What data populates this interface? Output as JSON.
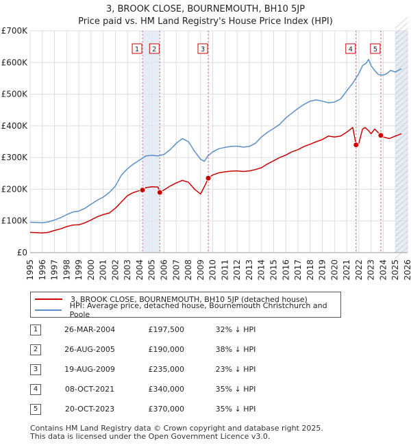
{
  "chart_data": {
    "type": "line",
    "title": "3, BROOK CLOSE, BOURNEMOUTH, BH10 5JP",
    "subtitle": "Price paid vs. HM Land Registry's House Price Index (HPI)",
    "ylabel": "",
    "xlabel": "",
    "xlim": [
      1995,
      2026
    ],
    "ylim": [
      0,
      700000
    ],
    "y_ticks": [
      0,
      100000,
      200000,
      300000,
      400000,
      500000,
      600000,
      700000
    ],
    "y_tick_labels": [
      "£0",
      "£100K",
      "£200K",
      "£300K",
      "£400K",
      "£500K",
      "£600K",
      "£700K"
    ],
    "x_ticks": [
      1995,
      1996,
      1997,
      1998,
      1999,
      2000,
      2001,
      2002,
      2003,
      2004,
      2005,
      2006,
      2007,
      2008,
      2009,
      2010,
      2011,
      2012,
      2013,
      2014,
      2015,
      2016,
      2017,
      2018,
      2019,
      2020,
      2021,
      2022,
      2023,
      2024,
      2025,
      2026
    ],
    "grid": true,
    "shaded_regions": [
      [
        2004.23,
        2005.65
      ],
      [
        2009.63,
        2009.7
      ],
      [
        2021.77,
        2021.83
      ],
      [
        2023.8,
        2023.86
      ],
      [
        2025.0,
        2026.0
      ]
    ],
    "series": [
      {
        "name": "3, BROOK CLOSE, BOURNEMOUTH, BH10 5JP (detached house)",
        "color": "#cc0000",
        "x": [
          1995,
          1995.5,
          1996,
          1996.5,
          1997,
          1997.5,
          1998,
          1998.5,
          1999,
          1999.5,
          2000,
          2000.5,
          2001,
          2001.5,
          2002,
          2002.5,
          2003,
          2003.5,
          2004,
          2004.23,
          2004.5,
          2005,
          2005.5,
          2005.65,
          2006,
          2006.5,
          2007,
          2007.5,
          2008,
          2008.5,
          2009,
          2009.4,
          2009.63,
          2009.8,
          2010,
          2010.5,
          2011,
          2011.5,
          2012,
          2012.5,
          2013,
          2013.5,
          2014,
          2014.5,
          2015,
          2015.5,
          2016,
          2016.5,
          2017,
          2017.5,
          2018,
          2018.5,
          2019,
          2019.5,
          2020,
          2020.5,
          2021,
          2021.5,
          2021.77,
          2022,
          2022.3,
          2022.5,
          2022.8,
          2023,
          2023.3,
          2023.8,
          2024,
          2024.5,
          2025,
          2025.5
        ],
        "values": [
          64000,
          63000,
          62000,
          64000,
          70000,
          75000,
          82000,
          87000,
          88000,
          94000,
          103000,
          113000,
          120000,
          125000,
          140000,
          160000,
          180000,
          190000,
          196000,
          197500,
          205000,
          208000,
          207000,
          190000,
          198000,
          210000,
          220000,
          228000,
          222000,
          200000,
          185000,
          215000,
          235000,
          240000,
          245000,
          252000,
          255000,
          257000,
          258000,
          256000,
          258000,
          262000,
          268000,
          280000,
          290000,
          300000,
          308000,
          318000,
          325000,
          335000,
          342000,
          350000,
          357000,
          368000,
          365000,
          368000,
          380000,
          395000,
          340000,
          345000,
          390000,
          395000,
          385000,
          375000,
          390000,
          370000,
          365000,
          360000,
          368000,
          375000
        ]
      },
      {
        "name": "HPI: Average price, detached house, Bournemouth Christchurch and Poole",
        "color": "#5b8fc9",
        "x": [
          1995,
          1995.5,
          1996,
          1996.5,
          1997,
          1997.5,
          1998,
          1998.5,
          1999,
          1999.5,
          2000,
          2000.5,
          2001,
          2001.5,
          2002,
          2002.5,
          2003,
          2003.5,
          2004,
          2004.5,
          2005,
          2005.5,
          2006,
          2006.5,
          2007,
          2007.5,
          2008,
          2008.5,
          2009,
          2009.3,
          2009.6,
          2010,
          2010.5,
          2011,
          2011.5,
          2012,
          2012.5,
          2013,
          2013.5,
          2014,
          2014.5,
          2015,
          2015.5,
          2016,
          2016.5,
          2017,
          2017.5,
          2018,
          2018.5,
          2019,
          2019.5,
          2020,
          2020.5,
          2021,
          2021.5,
          2022,
          2022.3,
          2022.6,
          2022.8,
          2023,
          2023.3,
          2023.6,
          2024,
          2024.3,
          2024.6,
          2025,
          2025.5
        ],
        "values": [
          96000,
          95000,
          94000,
          97000,
          103000,
          110000,
          120000,
          128000,
          131000,
          140000,
          153000,
          165000,
          175000,
          190000,
          210000,
          245000,
          265000,
          280000,
          292000,
          305000,
          307000,
          305000,
          310000,
          325000,
          345000,
          360000,
          350000,
          320000,
          295000,
          288000,
          305000,
          318000,
          328000,
          332000,
          335000,
          336000,
          333000,
          335000,
          345000,
          365000,
          380000,
          392000,
          405000,
          425000,
          440000,
          455000,
          468000,
          478000,
          482000,
          478000,
          473000,
          475000,
          485000,
          510000,
          535000,
          565000,
          590000,
          598000,
          610000,
          590000,
          575000,
          562000,
          560000,
          565000,
          575000,
          570000,
          580000
        ]
      }
    ],
    "markers": [
      {
        "label": "1",
        "x": 2004.23,
        "y": 197500
      },
      {
        "label": "2",
        "x": 2005.65,
        "y": 190000
      },
      {
        "label": "3",
        "x": 2009.63,
        "y": 235000
      },
      {
        "label": "4",
        "x": 2021.77,
        "y": 340000
      },
      {
        "label": "5",
        "x": 2023.8,
        "y": 370000
      }
    ]
  },
  "legend": {
    "items": [
      {
        "label": "3, BROOK CLOSE, BOURNEMOUTH, BH10 5JP (detached house)",
        "color": "#cc0000"
      },
      {
        "label": "HPI: Average price, detached house, Bournemouth Christchurch and Poole",
        "color": "#5b8fc9"
      }
    ]
  },
  "transactions": [
    {
      "num": "1",
      "date": "26-MAR-2004",
      "price": "£197,500",
      "hpi": "32% ↓ HPI"
    },
    {
      "num": "2",
      "date": "26-AUG-2005",
      "price": "£190,000",
      "hpi": "38% ↓ HPI"
    },
    {
      "num": "3",
      "date": "19-AUG-2009",
      "price": "£235,000",
      "hpi": "23% ↓ HPI"
    },
    {
      "num": "4",
      "date": "08-OCT-2021",
      "price": "£340,000",
      "hpi": "35% ↓ HPI"
    },
    {
      "num": "5",
      "date": "20-OCT-2023",
      "price": "£370,000",
      "hpi": "35% ↓ HPI"
    }
  ],
  "footer": {
    "line1": "Contains HM Land Registry data © Crown copyright and database right 2025.",
    "line2": "This data is licensed under the Open Government Licence v3.0."
  }
}
